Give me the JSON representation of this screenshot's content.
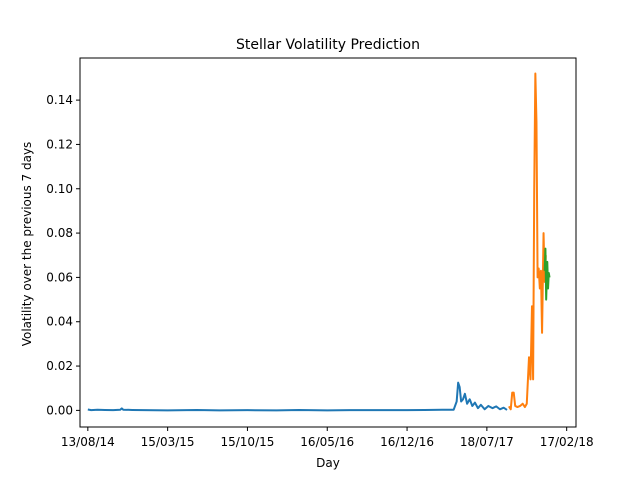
{
  "chart_data": {
    "type": "line",
    "title": "Stellar Volatility Prediction",
    "xlabel": "Day",
    "ylabel": "Volatility over the previous 7 days",
    "x_ticks": [
      "13/08/14",
      "15/03/15",
      "15/10/15",
      "16/05/16",
      "16/12/16",
      "18/07/17",
      "17/02/18"
    ],
    "y_ticks": [
      "0.00",
      "0.02",
      "0.04",
      "0.06",
      "0.08",
      "0.10",
      "0.12",
      "0.14"
    ],
    "xlim": [
      "2014-07-23",
      "2018-03-14"
    ],
    "ylim": [
      -0.0075,
      0.159
    ],
    "grid": false,
    "series": [
      {
        "color": "#1f77b4",
        "points": [
          [
            "2014-08-13",
            0.0004
          ],
          [
            "2014-08-22",
            0.0001
          ],
          [
            "2014-09-08",
            0.0003
          ],
          [
            "2014-09-28",
            0.0002
          ],
          [
            "2014-10-20",
            0.0001
          ],
          [
            "2014-11-08",
            0.0003
          ],
          [
            "2014-11-12",
            0.0009
          ],
          [
            "2014-11-16",
            0.0003
          ],
          [
            "2014-12-10",
            0.0002
          ],
          [
            "2015-01-10",
            0.0001
          ],
          [
            "2015-03-15",
            0.0
          ],
          [
            "2015-06-01",
            0.0002
          ],
          [
            "2015-08-01",
            0.0
          ],
          [
            "2015-10-15",
            0.0001
          ],
          [
            "2016-01-01",
            0.0
          ],
          [
            "2016-03-01",
            0.0002
          ],
          [
            "2016-05-16",
            0.0
          ],
          [
            "2016-07-15",
            0.0001
          ],
          [
            "2016-10-01",
            0.0001
          ],
          [
            "2016-12-16",
            0.0001
          ],
          [
            "2017-02-01",
            0.0002
          ],
          [
            "2017-03-20",
            0.0003
          ],
          [
            "2017-04-20",
            0.0003
          ],
          [
            "2017-04-28",
            0.004
          ],
          [
            "2017-05-02",
            0.0125
          ],
          [
            "2017-05-06",
            0.0105
          ],
          [
            "2017-05-10",
            0.004
          ],
          [
            "2017-05-15",
            0.005
          ],
          [
            "2017-05-20",
            0.0075
          ],
          [
            "2017-05-26",
            0.003
          ],
          [
            "2017-06-02",
            0.005
          ],
          [
            "2017-06-09",
            0.002
          ],
          [
            "2017-06-16",
            0.0035
          ],
          [
            "2017-06-24",
            0.001
          ],
          [
            "2017-07-02",
            0.0025
          ],
          [
            "2017-07-12",
            0.0005
          ],
          [
            "2017-07-22",
            0.002
          ],
          [
            "2017-08-02",
            0.001
          ],
          [
            "2017-08-12",
            0.0018
          ],
          [
            "2017-08-22",
            0.0005
          ],
          [
            "2017-09-01",
            0.0012
          ],
          [
            "2017-09-10",
            0.0002
          ]
        ]
      },
      {
        "color": "#ff7f0e",
        "points": [
          [
            "2017-09-15",
            0.0018
          ],
          [
            "2017-09-20",
            0.0005
          ],
          [
            "2017-09-24",
            0.008
          ],
          [
            "2017-09-28",
            0.008
          ],
          [
            "2017-10-02",
            0.002
          ],
          [
            "2017-10-08",
            0.0015
          ],
          [
            "2017-10-15",
            0.002
          ],
          [
            "2017-10-22",
            0.003
          ],
          [
            "2017-10-28",
            0.0015
          ],
          [
            "2017-11-02",
            0.003
          ],
          [
            "2017-11-08",
            0.024
          ],
          [
            "2017-11-12",
            0.014
          ],
          [
            "2017-11-16",
            0.047
          ],
          [
            "2017-11-19",
            0.014
          ],
          [
            "2017-11-22",
            0.1
          ],
          [
            "2017-11-25",
            0.152
          ],
          [
            "2017-11-28",
            0.13
          ],
          [
            "2017-12-01",
            0.06
          ],
          [
            "2017-12-04",
            0.064
          ],
          [
            "2017-12-07",
            0.055
          ],
          [
            "2017-12-10",
            0.063
          ],
          [
            "2017-12-13",
            0.035
          ],
          [
            "2017-12-17",
            0.08
          ],
          [
            "2017-12-20",
            0.058
          ],
          [
            "2017-12-23",
            0.07
          ]
        ]
      },
      {
        "color": "#2ca02c",
        "points": [
          [
            "2017-12-20",
            0.063
          ],
          [
            "2017-12-22",
            0.073
          ],
          [
            "2017-12-24",
            0.05
          ],
          [
            "2017-12-27",
            0.067
          ],
          [
            "2017-12-29",
            0.055
          ],
          [
            "2017-12-31",
            0.062
          ],
          [
            "2018-01-02",
            0.06
          ]
        ]
      }
    ]
  }
}
